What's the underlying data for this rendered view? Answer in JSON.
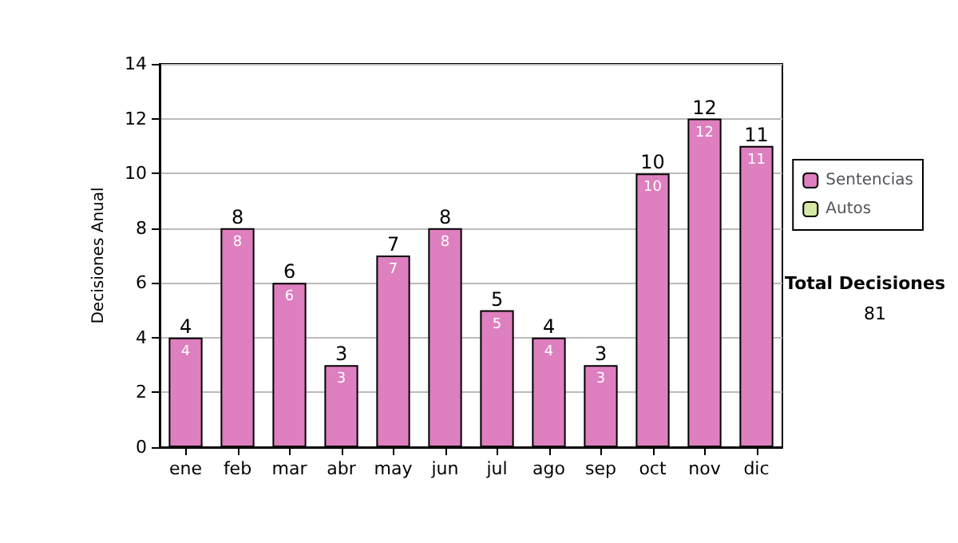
{
  "chart_data": {
    "type": "bar",
    "ylabel": "Decisiones Anual",
    "categories": [
      "ene",
      "feb",
      "mar",
      "abr",
      "may",
      "jun",
      "jul",
      "ago",
      "sep",
      "oct",
      "nov",
      "dic"
    ],
    "series": [
      {
        "name": "Sentencias",
        "color": "#de7fbf",
        "values": [
          4,
          8,
          6,
          3,
          7,
          8,
          5,
          4,
          3,
          10,
          12,
          11
        ]
      },
      {
        "name": "Autos",
        "color": "#d6e8a4",
        "values": [
          null,
          null,
          null,
          null,
          null,
          null,
          null,
          null,
          null,
          null,
          null,
          null
        ]
      }
    ],
    "stacked": true,
    "data_labels": true,
    "totals": [
      "4",
      "8",
      "6",
      "3",
      "7",
      "8",
      "5",
      "4",
      "3",
      "10",
      "12",
      "11"
    ],
    "ylim": [
      0,
      14
    ],
    "yticks": [
      0,
      2,
      4,
      6,
      8,
      10,
      12,
      14
    ],
    "grid": "y",
    "legend": "right",
    "annotations": [
      "Total Decisiones",
      "81"
    ]
  }
}
